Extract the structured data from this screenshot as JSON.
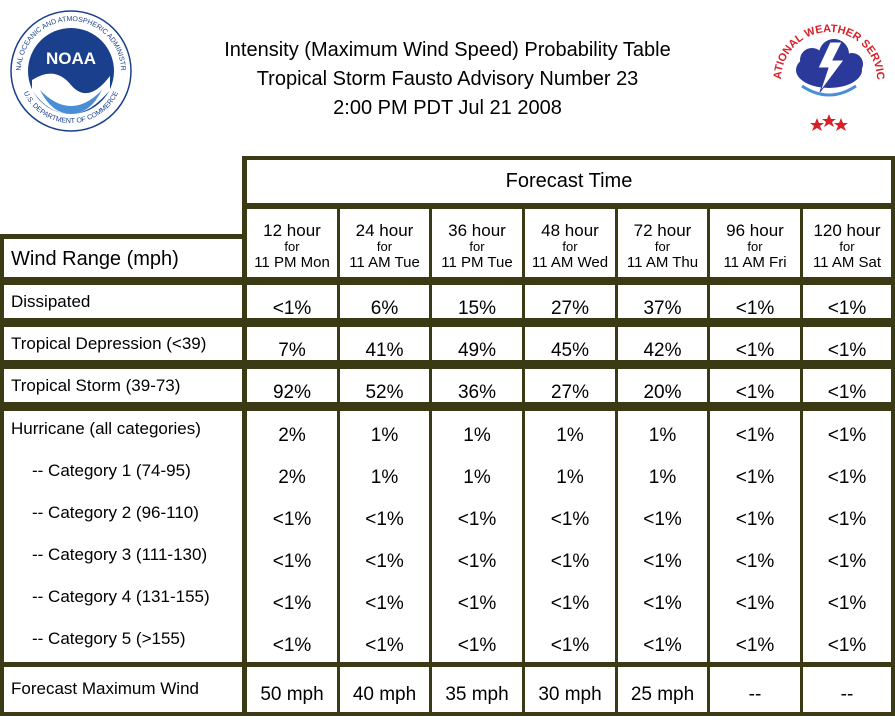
{
  "title": {
    "line1": "Intensity (Maximum Wind Speed) Probability Table",
    "line2": "Tropical Storm Fausto Advisory Number 23",
    "line3": "2:00 PM PDT Jul 21 2008"
  },
  "logos": {
    "noaa": {
      "text": "NOAA",
      "ring_text": "NATIONAL OCEANIC AND ATMOSPHERIC ADMINISTRATION",
      "bottom_text": "U.S. DEPARTMENT OF COMMERCE"
    },
    "nws": {
      "ring_text": "NATIONAL WEATHER SERVICE"
    }
  },
  "colors": {
    "grid": "#3a3a14",
    "noaa_blue": "#1a3f8c",
    "nws_red": "#d8202a",
    "nws_cloud": "#2b3a9a"
  },
  "table": {
    "forecast_header": "Forecast Time",
    "wind_header": "Wind Range (mph)",
    "columns": [
      {
        "hour": "12 hour",
        "for": "for",
        "when": "11 PM Mon"
      },
      {
        "hour": "24 hour",
        "for": "for",
        "when": "11 AM Tue"
      },
      {
        "hour": "36 hour",
        "for": "for",
        "when": "11 PM Tue"
      },
      {
        "hour": "48 hour",
        "for": "for",
        "when": "11 AM Wed"
      },
      {
        "hour": "72 hour",
        "for": "for",
        "when": "11 AM Thu"
      },
      {
        "hour": "96 hour",
        "for": "for",
        "when": "11 AM Fri"
      },
      {
        "hour": "120 hour",
        "for": "for",
        "when": "11 AM Sat"
      }
    ],
    "rows": [
      {
        "label": "Dissipated",
        "values": [
          "<1%",
          "6%",
          "15%",
          "27%",
          "37%",
          "<1%",
          "<1%"
        ]
      },
      {
        "label": "Tropical Depression (<39)",
        "values": [
          "7%",
          "41%",
          "49%",
          "45%",
          "42%",
          "<1%",
          "<1%"
        ]
      },
      {
        "label": "Tropical Storm (39-73)",
        "values": [
          "92%",
          "52%",
          "36%",
          "27%",
          "20%",
          "<1%",
          "<1%"
        ]
      }
    ],
    "hurricane": [
      {
        "label": "Hurricane (all categories)",
        "values": [
          "2%",
          "1%",
          "1%",
          "1%",
          "1%",
          "<1%",
          "<1%"
        ]
      },
      {
        "label": "-- Category 1 (74-95)",
        "values": [
          "2%",
          "1%",
          "1%",
          "1%",
          "1%",
          "<1%",
          "<1%"
        ]
      },
      {
        "label": "-- Category 2 (96-110)",
        "values": [
          "<1%",
          "<1%",
          "<1%",
          "<1%",
          "<1%",
          "<1%",
          "<1%"
        ]
      },
      {
        "label": "-- Category 3 (111-130)",
        "values": [
          "<1%",
          "<1%",
          "<1%",
          "<1%",
          "<1%",
          "<1%",
          "<1%"
        ]
      },
      {
        "label": "-- Category 4 (131-155)",
        "values": [
          "<1%",
          "<1%",
          "<1%",
          "<1%",
          "<1%",
          "<1%",
          "<1%"
        ]
      },
      {
        "label": "-- Category 5 (>155)",
        "values": [
          "<1%",
          "<1%",
          "<1%",
          "<1%",
          "<1%",
          "<1%",
          "<1%"
        ]
      }
    ],
    "max_wind": {
      "label": "Forecast Maximum Wind",
      "values": [
        "50 mph",
        "40 mph",
        "35 mph",
        "30 mph",
        "25 mph",
        "--",
        "--"
      ]
    }
  }
}
